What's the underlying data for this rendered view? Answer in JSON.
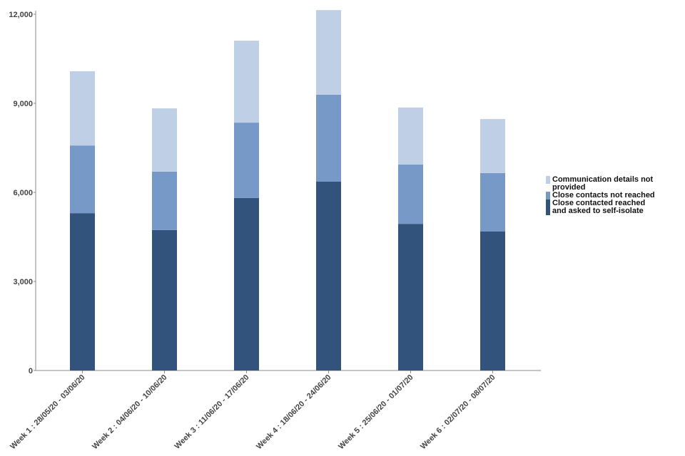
{
  "chart_data": {
    "type": "stacked_bar",
    "categories": [
      "Week 1 : 28/05/20 - 03/06/20",
      "Week 2 : 04/06/20 - 10/06/20",
      "Week 3 : 11/06/20 - 17/06/20",
      "Week 4 : 18/06/20 - 24/06/20",
      "Week 5 : 25/06/20 - 01/07/20",
      "Week 6 : 02/07/20 - 08/07/20"
    ],
    "series": [
      {
        "name": "Close contacted reached\n and asked to self-isolate",
        "color": "#32537c",
        "values": [
          5300,
          4730,
          5810,
          6360,
          4940,
          4680
        ]
      },
      {
        "name": "Close contacts not reached",
        "color": "#7799c8",
        "values": [
          2280,
          1970,
          2540,
          2930,
          2000,
          1970
        ]
      },
      {
        "name": "Communication details not provided",
        "color": "#bfcfe6",
        "values": [
          2500,
          2130,
          2760,
          2850,
          1920,
          1820
        ]
      }
    ],
    "ylim": [
      0,
      12000
    ],
    "yticks": [
      0,
      {
        "value": 3000,
        "label": "3,000"
      },
      {
        "value": 6000,
        "label": "6,000"
      },
      {
        "value": 9000,
        "label": "9,000"
      },
      {
        "value": 12000,
        "label": "12,000"
      }
    ],
    "legend": "right"
  }
}
